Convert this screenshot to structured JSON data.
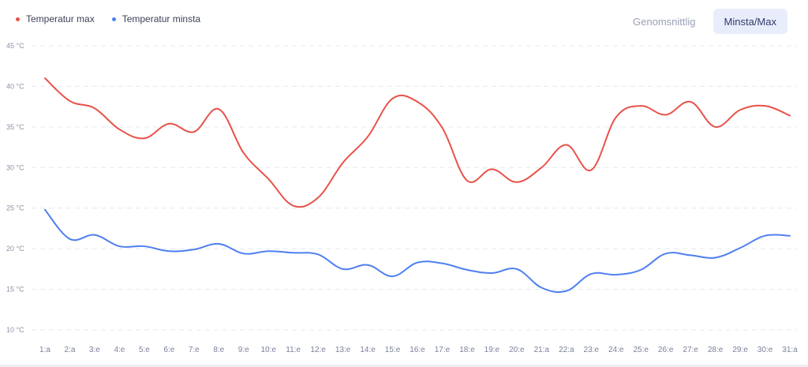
{
  "legend": [
    {
      "label": "Temperatur max",
      "color": "#e8524a"
    },
    {
      "label": "Temperatur minsta",
      "color": "#4f7ff0"
    }
  ],
  "toggle": {
    "average_label": "Genomsnittlig",
    "minmax_label": "Minsta/Max",
    "active": "minmax"
  },
  "chart_data": {
    "type": "line",
    "x": [
      "1:a",
      "2:a",
      "3:e",
      "4:e",
      "5:e",
      "6:e",
      "7:e",
      "8:e",
      "9:e",
      "10:e",
      "11:e",
      "12:e",
      "13:e",
      "14:e",
      "15:e",
      "16:e",
      "17:e",
      "18:e",
      "19:e",
      "20:e",
      "21:a",
      "22:a",
      "23:e",
      "24:e",
      "25:e",
      "26:e",
      "27:e",
      "28:e",
      "29:e",
      "30:e",
      "31:a"
    ],
    "series": [
      {
        "name": "Temperatur max",
        "color": "#e8524a",
        "values": [
          41.0,
          38.2,
          37.3,
          34.7,
          33.6,
          35.4,
          34.4,
          37.2,
          31.8,
          28.6,
          25.3,
          26.3,
          30.6,
          33.8,
          38.5,
          38.1,
          34.9,
          28.4,
          29.8,
          28.2,
          30.0,
          32.8,
          29.7,
          36.2,
          37.6,
          36.5,
          38.1,
          35.0,
          37.1,
          37.6,
          36.4
        ]
      },
      {
        "name": "Temperatur minsta",
        "color": "#4f7ff0",
        "values": [
          24.8,
          21.2,
          21.7,
          20.3,
          20.3,
          19.7,
          19.9,
          20.6,
          19.4,
          19.7,
          19.5,
          19.3,
          17.5,
          18.0,
          16.6,
          18.3,
          18.2,
          17.4,
          17.0,
          17.5,
          15.2,
          14.8,
          16.9,
          16.8,
          17.4,
          19.4,
          19.2,
          18.9,
          20.1,
          21.6,
          21.6
        ]
      }
    ],
    "yticks": [
      10,
      15,
      20,
      25,
      30,
      35,
      40,
      45
    ],
    "ytick_labels": [
      "10 °C",
      "15 °C",
      "20 °C",
      "25 °C",
      "30 °C",
      "35 °C",
      "40 °C",
      "45 °C"
    ],
    "ylim": [
      10,
      45
    ],
    "grid": true,
    "legend_position": "top-left"
  }
}
